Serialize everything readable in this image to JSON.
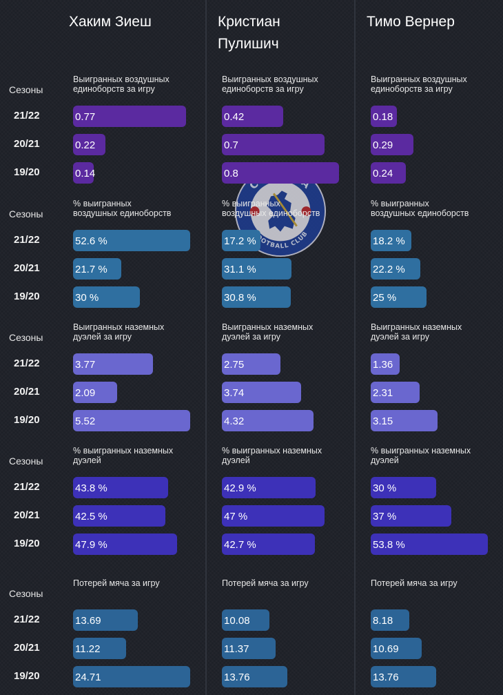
{
  "chart_data": {
    "type": "bar",
    "orientation": "horizontal",
    "players": [
      "Хаким Зиеш",
      "Кристиан Пулишич",
      "Тимо Вернер"
    ],
    "player_lines": [
      [
        "Хаким Зиеш"
      ],
      [
        "Кристиан",
        "Пулишич"
      ],
      [
        "Тимо Вернер"
      ]
    ],
    "seasons_header": "Сезоны",
    "seasons": [
      "21/22",
      "20/21",
      "19/20"
    ],
    "metrics": [
      {
        "title_lines": [
          "Выигранных воздушных",
          "единоборств за игру"
        ],
        "color": "#5b2aa0",
        "max": 0.8,
        "values": [
          [
            0.77,
            0.22,
            0.14
          ],
          [
            0.42,
            0.7,
            0.8
          ],
          [
            0.18,
            0.29,
            0.24
          ]
        ],
        "labels": [
          [
            "0.77",
            "0.22",
            "0.14"
          ],
          [
            "0.42",
            "0.7",
            "0.8"
          ],
          [
            "0.18",
            "0.29",
            "0.24"
          ]
        ]
      },
      {
        "title_lines": [
          "% выигранных",
          "воздушных единоборств"
        ],
        "color": "#2f6fa0",
        "max": 52.6,
        "values": [
          [
            52.6,
            21.7,
            30
          ],
          [
            17.2,
            31.1,
            30.8
          ],
          [
            18.2,
            22.2,
            25
          ]
        ],
        "labels": [
          [
            "52.6 %",
            "21.7 %",
            "30 %"
          ],
          [
            "17.2 %",
            "31.1 %",
            "30.8 %"
          ],
          [
            "18.2 %",
            "22.2 %",
            "25 %"
          ]
        ]
      },
      {
        "title_lines": [
          "Выигранных наземных",
          "дуэлей за игру"
        ],
        "color": "#6a67cf",
        "max": 5.52,
        "values": [
          [
            3.77,
            2.09,
            5.52
          ],
          [
            2.75,
            3.74,
            4.32
          ],
          [
            1.36,
            2.31,
            3.15
          ]
        ],
        "labels": [
          [
            "3.77",
            "2.09",
            "5.52"
          ],
          [
            "2.75",
            "3.74",
            "4.32"
          ],
          [
            "1.36",
            "2.31",
            "3.15"
          ]
        ]
      },
      {
        "title_lines": [
          "% выигранных наземных",
          "дуэлей"
        ],
        "color": "#3d31b8",
        "max": 53.8,
        "values": [
          [
            43.8,
            42.5,
            47.9
          ],
          [
            42.9,
            47,
            42.7
          ],
          [
            30,
            37,
            53.8
          ]
        ],
        "labels": [
          [
            "43.8 %",
            "42.5 %",
            "47.9 %"
          ],
          [
            "42.9 %",
            "47 %",
            "42.7 %"
          ],
          [
            "30 %",
            "37 %",
            "53.8 %"
          ]
        ]
      },
      {
        "title_lines": [
          "Потерей мяча за игру"
        ],
        "color": "#2c6496",
        "max": 24.71,
        "values": [
          [
            13.69,
            11.22,
            24.71
          ],
          [
            10.08,
            11.37,
            13.76
          ],
          [
            8.18,
            10.69,
            13.76
          ]
        ],
        "labels": [
          [
            "13.69",
            "11.22",
            "24.71"
          ],
          [
            "10.08",
            "11.37",
            "13.76"
          ],
          [
            "8.18",
            "10.69",
            "13.76"
          ]
        ]
      }
    ]
  },
  "logo": {
    "text_top": "CHELSEA",
    "text_bottom": "FOOTBALL CLUB"
  }
}
